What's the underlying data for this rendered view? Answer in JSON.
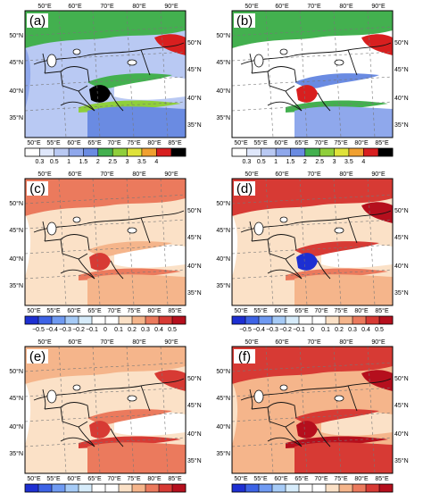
{
  "figure": {
    "panels": [
      {
        "id": "a",
        "label": "(a)",
        "type": "precip",
        "colorbar": "cb1"
      },
      {
        "id": "b",
        "label": "(b)",
        "type": "precip",
        "colorbar": "cb1"
      },
      {
        "id": "c",
        "label": "(c)",
        "type": "diff1",
        "colorbar": "cb2"
      },
      {
        "id": "d",
        "label": "(d)",
        "type": "diff2",
        "colorbar": "cb2"
      },
      {
        "id": "e",
        "label": "(e)",
        "type": "diff1",
        "colorbar": "cb2"
      },
      {
        "id": "f",
        "label": "(f)",
        "type": "diff3",
        "colorbar": "cb2"
      }
    ],
    "lon_top": [
      "50°E",
      "60°E",
      "70°E",
      "80°E",
      "90°E"
    ],
    "lon_bottom": [
      "50°E",
      "55°E",
      "60°E",
      "65°E",
      "70°E",
      "75°E",
      "80°E",
      "85°E"
    ],
    "lat_left": [
      "50°N",
      "45°N",
      "40°N",
      "35°N"
    ],
    "lat_right": [
      "50°N",
      "45°N",
      "40°N",
      "35°N"
    ],
    "colorbars": {
      "cb1": {
        "ticks": [
          "0.3",
          "0.5",
          "1",
          "1.5",
          "2",
          "2.5",
          "3",
          "3.5",
          "4"
        ],
        "colors": [
          "#ffffff",
          "#dfe7fb",
          "#b9c9f3",
          "#8fa8ec",
          "#6a8be2",
          "#43b04f",
          "#8fcf3b",
          "#dfe23a",
          "#f0a030",
          "#d81f1f",
          "#000000"
        ]
      },
      "cb2": {
        "ticks": [
          "−0.5",
          "−0.4",
          "−0.3",
          "−0.2",
          "−0.1",
          "0",
          "0.1",
          "0.2",
          "0.3",
          "0.4",
          "0.5"
        ],
        "colors": [
          "#1d2fd2",
          "#3d63e6",
          "#6f9af2",
          "#a6cbf7",
          "#d7ecfb",
          "#ffffff",
          "#ffffff",
          "#fbe1c7",
          "#f5b58b",
          "#eb7a5d",
          "#d73a34",
          "#b50f1d"
        ]
      }
    }
  }
}
